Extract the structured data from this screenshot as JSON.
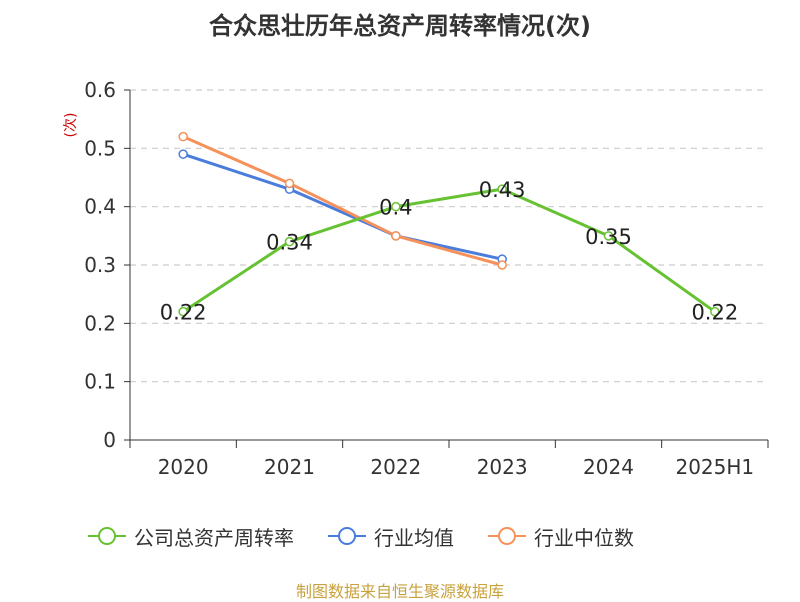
{
  "title": "合众思壮历年总资产周转率情况(次)",
  "source": "制图数据来自恒生聚源数据库",
  "colors": {
    "company": "#66c232",
    "industry_avg": "#4a7ddb",
    "industry_median": "#f5915a",
    "axis_unit": "#cc0000",
    "grid": "#cccccc",
    "axis": "#333333"
  },
  "chart_data": {
    "type": "line",
    "title": "合众思壮历年总资产周转率情况(次)",
    "ylabel": "(次)",
    "ylim": [
      0,
      0.6
    ],
    "yticks": [
      "0",
      "0.1",
      "0.2",
      "0.3",
      "0.4",
      "0.5",
      "0.6"
    ],
    "categories": [
      "2020",
      "2021",
      "2022",
      "2023",
      "2024",
      "2025H1"
    ],
    "grid": true,
    "legend_position": "bottom",
    "series": [
      {
        "name": "公司总资产周转率",
        "values": [
          0.22,
          0.34,
          0.4,
          0.43,
          0.35,
          0.22
        ],
        "labels": [
          "0.22",
          "0.34",
          "0.4",
          "0.43",
          "0.35",
          "0.22"
        ]
      },
      {
        "name": "行业均值",
        "values": [
          0.49,
          0.43,
          0.35,
          0.31,
          null,
          null
        ]
      },
      {
        "name": "行业中位数",
        "values": [
          0.52,
          0.44,
          0.35,
          0.3,
          null,
          null
        ]
      }
    ]
  }
}
